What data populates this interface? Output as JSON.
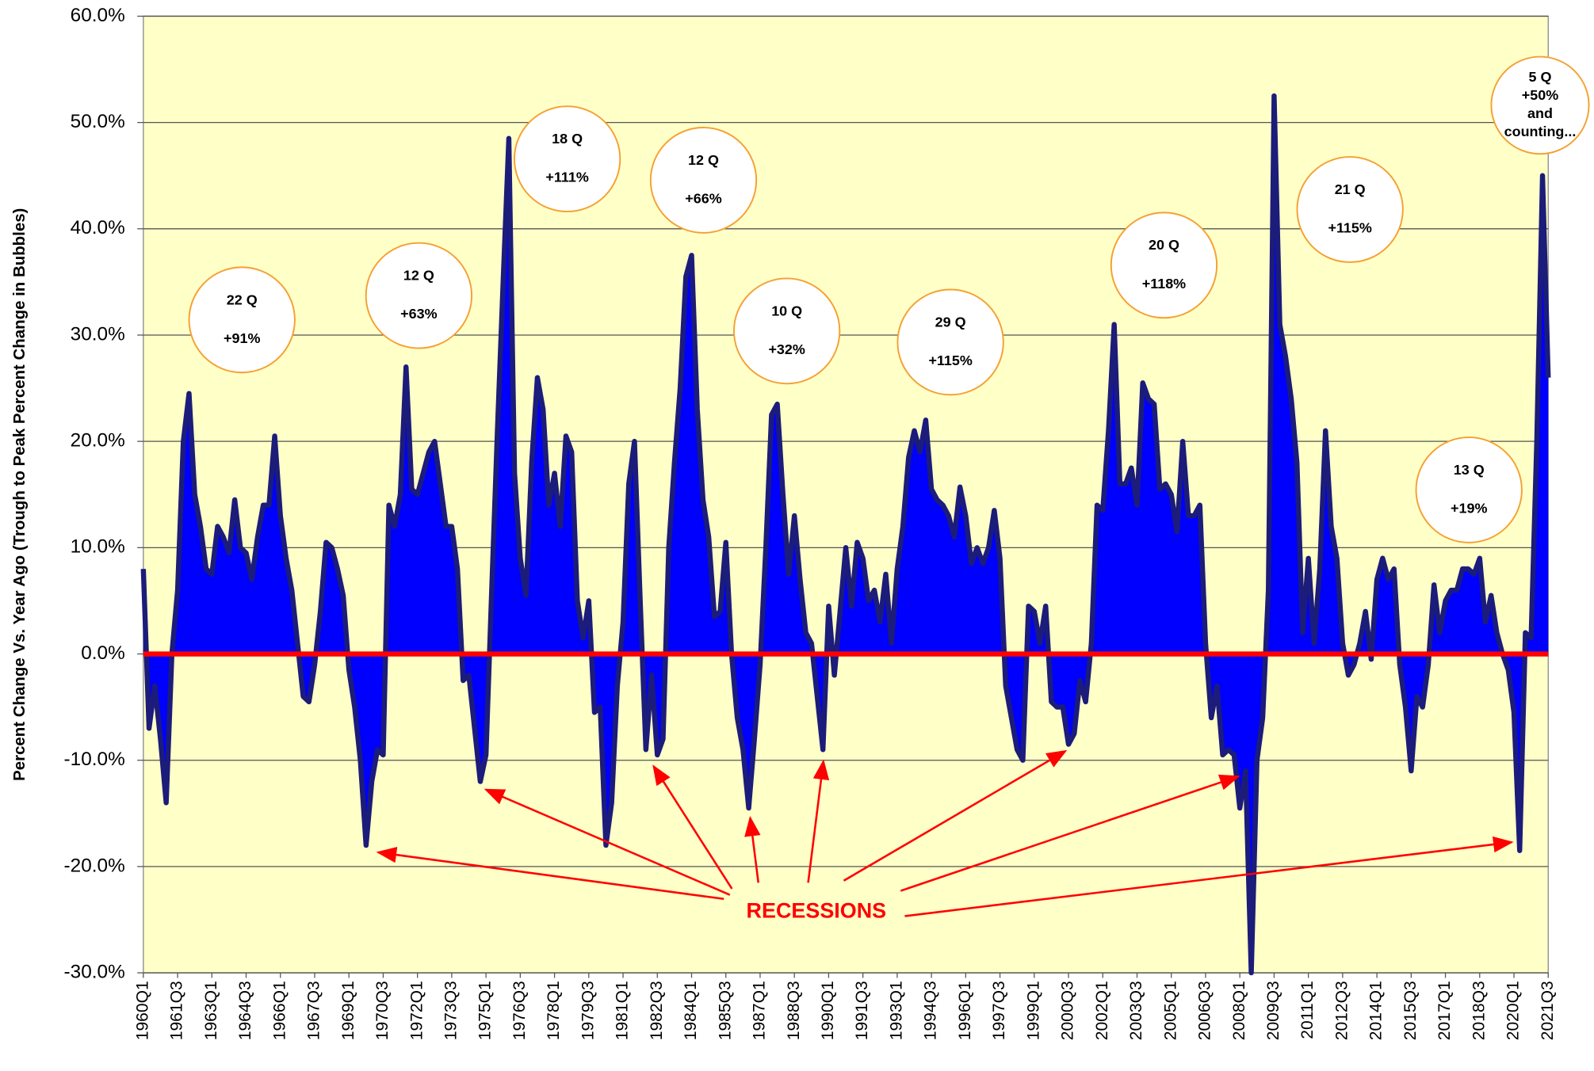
{
  "chart_data": {
    "type": "area",
    "y_axis_label": "Percent Change Vs. Year Ago (Trough to Peak Percent Change in Bubbles)",
    "ylim": [
      -30,
      60
    ],
    "yticks": [
      {
        "value": -30,
        "label": "-30.0%"
      },
      {
        "value": -20,
        "label": "-20.0%"
      },
      {
        "value": -10,
        "label": "-10.0%"
      },
      {
        "value": 0,
        "label": "0.0%"
      },
      {
        "value": 10,
        "label": "10.0%"
      },
      {
        "value": 20,
        "label": "20.0%"
      },
      {
        "value": 30,
        "label": "30.0%"
      },
      {
        "value": 40,
        "label": "40.0%"
      },
      {
        "value": 50,
        "label": "50.0%"
      },
      {
        "value": 60,
        "label": "60.0%"
      }
    ],
    "grid": true,
    "color": "#0000ff",
    "line_color": "#1c1c7a",
    "zero_line_color": "#ff0000",
    "background": "#ffffc8",
    "categories": [
      "1960Q1",
      null,
      null,
      null,
      null,
      null,
      "1961Q3",
      null,
      null,
      null,
      null,
      null,
      "1963Q1",
      null,
      null,
      null,
      null,
      null,
      "1964Q3",
      null,
      null,
      null,
      null,
      null,
      "1966Q1",
      null,
      null,
      null,
      null,
      null,
      "1967Q3",
      null,
      null,
      null,
      null,
      null,
      "1969Q1",
      null,
      null,
      null,
      null,
      null,
      "1970Q3",
      null,
      null,
      null,
      null,
      null,
      "1972Q1",
      null,
      null,
      null,
      null,
      null,
      "1973Q3",
      null,
      null,
      null,
      null,
      null,
      "1975Q1",
      null,
      null,
      null,
      null,
      null,
      "1976Q3",
      null,
      null,
      null,
      null,
      null,
      "1978Q1",
      null,
      null,
      null,
      null,
      null,
      "1979Q3",
      null,
      null,
      null,
      null,
      null,
      "1981Q1",
      null,
      null,
      null,
      null,
      null,
      "1982Q3",
      null,
      null,
      null,
      null,
      null,
      "1984Q1",
      null,
      null,
      null,
      null,
      null,
      "1985Q3",
      null,
      null,
      null,
      null,
      null,
      "1987Q1",
      null,
      null,
      null,
      null,
      null,
      "1988Q3",
      null,
      null,
      null,
      null,
      null,
      "1990Q1",
      null,
      null,
      null,
      null,
      null,
      "1991Q3",
      null,
      null,
      null,
      null,
      null,
      "1993Q1",
      null,
      null,
      null,
      null,
      null,
      "1994Q3",
      null,
      null,
      null,
      null,
      null,
      "1996Q1",
      null,
      null,
      null,
      null,
      null,
      "1997Q3",
      null,
      null,
      null,
      null,
      null,
      "1999Q1",
      null,
      null,
      null,
      null,
      null,
      "2000Q3",
      null,
      null,
      null,
      null,
      null,
      "2002Q1",
      null,
      null,
      null,
      null,
      null,
      "2003Q3",
      null,
      null,
      null,
      null,
      null,
      "2005Q1",
      null,
      null,
      null,
      null,
      null,
      "2006Q3",
      null,
      null,
      null,
      null,
      null,
      "2008Q1",
      null,
      null,
      null,
      null,
      null,
      "2009Q3",
      null,
      null,
      null,
      null,
      null,
      "2011Q1",
      null,
      null,
      null,
      null,
      null,
      "2012Q3",
      null,
      null,
      null,
      null,
      null,
      "2014Q1",
      null,
      null,
      null,
      null,
      null,
      "2015Q3",
      null,
      null,
      null,
      null,
      null,
      "2017Q1",
      null,
      null,
      null,
      null,
      null,
      "2018Q3",
      null,
      null,
      null,
      null,
      null,
      "2020Q1",
      null,
      null,
      null,
      null,
      null,
      "2021Q3"
    ],
    "values": [
      8,
      -7,
      -3,
      -8,
      -14,
      0,
      6,
      20,
      24.5,
      15,
      12,
      8,
      7.5,
      12,
      11,
      9.5,
      14.5,
      10,
      9.5,
      7,
      11,
      14,
      14,
      20.5,
      13,
      9,
      6,
      1,
      -4,
      -4.5,
      -1,
      4,
      10.5,
      10,
      8,
      5.5,
      -1.5,
      -5,
      -10,
      -18,
      -12,
      -9,
      -9.5,
      14,
      12,
      15,
      27,
      15.5,
      15,
      17,
      19,
      20,
      16,
      12,
      12,
      8,
      -2.5,
      -2,
      -7,
      -12,
      -9.5,
      6,
      21,
      35,
      48.5,
      17,
      9,
      5.5,
      18,
      26,
      23,
      14,
      17,
      12,
      20.5,
      19,
      5,
      1.5,
      5,
      -5.5,
      -5,
      -18,
      -14,
      -3,
      3,
      16,
      20,
      5,
      -9,
      -2,
      -9.5,
      -8,
      10,
      18,
      25,
      35.5,
      37.5,
      23,
      14.5,
      11,
      3.5,
      4,
      10.5,
      0,
      -6,
      -9,
      -14.5,
      -8,
      -1,
      10,
      22.5,
      23.5,
      15,
      7.5,
      13,
      7,
      2,
      1,
      -4,
      -9,
      4.5,
      -2,
      4,
      10,
      4.5,
      10.5,
      9,
      5,
      6,
      3,
      7.5,
      1,
      8,
      12,
      18.5,
      21,
      19,
      22,
      15.5,
      14.5,
      14,
      13,
      11,
      15.7,
      13,
      8.5,
      10,
      8.5,
      10,
      13.5,
      9,
      -3,
      -6,
      -9,
      -10,
      4.5,
      4,
      1,
      4.5,
      -4.5,
      -5,
      -5,
      -8.5,
      -7.5,
      -2.5,
      -4.5,
      1,
      14,
      13.5,
      21,
      31,
      16,
      16,
      17.5,
      14,
      25.5,
      24,
      23.5,
      15.5,
      16,
      15,
      11.5,
      20,
      13,
      13,
      14,
      1,
      -6,
      -3,
      -9.5,
      -9,
      -9.5,
      -14.5,
      -11,
      -30,
      -10,
      -6,
      6,
      52.5,
      31,
      28,
      24,
      18,
      2,
      9,
      1,
      8,
      21,
      12,
      9,
      1,
      -2,
      -1,
      1,
      4,
      -0.5,
      7,
      9,
      7,
      8,
      -1,
      -5,
      -11,
      -4,
      -5,
      -1,
      6.5,
      2,
      5,
      6,
      6,
      8,
      8,
      7.5,
      9,
      3,
      5.5,
      2,
      0,
      -1.5,
      -5.5,
      -18.5,
      2,
      1.5,
      20,
      45,
      26
    ],
    "bubbles": [
      {
        "lines": [
          "22 Q",
          "+91%"
        ]
      },
      {
        "lines": [
          "12 Q",
          "+63%"
        ]
      },
      {
        "lines": [
          "18 Q",
          "+111%"
        ]
      },
      {
        "lines": [
          "12 Q",
          "+66%"
        ]
      },
      {
        "lines": [
          "10 Q",
          "+32%"
        ]
      },
      {
        "lines": [
          "29 Q",
          "+115%"
        ]
      },
      {
        "lines": [
          "20 Q",
          "+118%"
        ]
      },
      {
        "lines": [
          "21 Q",
          "+115%"
        ]
      },
      {
        "lines": [
          "13 Q",
          "+19%"
        ]
      },
      {
        "lines": [
          "5 Q",
          "+50%",
          "and",
          "counting..."
        ]
      }
    ],
    "recession_label": "RECESSIONS"
  }
}
